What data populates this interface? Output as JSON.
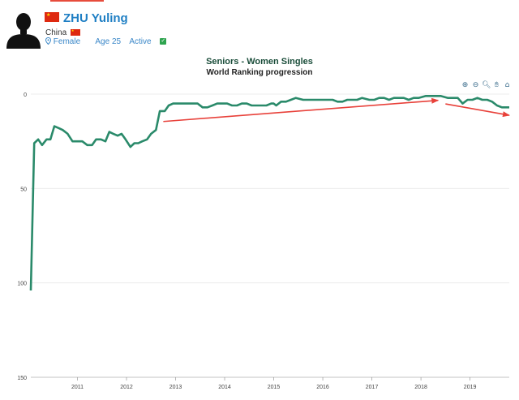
{
  "player": {
    "name": "ZHU Yuling",
    "country": "China",
    "gender": "Female",
    "age": "Age 25",
    "status": "Active",
    "name_color": "#1f7fc4"
  },
  "icons": {
    "avatar": "person-silhouette-icon",
    "flag": "china-flag-icon",
    "gender": "location-pin-icon",
    "status": "check-icon"
  },
  "toolbar": [
    "zoom-in-icon",
    "zoom-out-icon",
    "magnifier-icon",
    "pan-hand-icon",
    "home-icon"
  ],
  "chart_data": {
    "type": "line",
    "title": "Seniors - Women Singles",
    "subtitle": "World Ranking progression",
    "xlabel": "",
    "ylabel": "",
    "y_reversed": true,
    "ylim": [
      0,
      150
    ],
    "xlim": [
      2010.05,
      2019.8
    ],
    "yticks": [
      "0",
      "50",
      "100",
      "150"
    ],
    "xticks": [
      "2011",
      "2012",
      "2013",
      "2014",
      "2015",
      "2016",
      "2017",
      "2018",
      "2019"
    ],
    "grid": "horizontal",
    "line_color": "#2a8a6a",
    "annotation_color": "#e8413a",
    "series": [
      {
        "points": [
          [
            2010.05,
            104
          ],
          [
            2010.12,
            26
          ],
          [
            2010.2,
            24
          ],
          [
            2010.28,
            27
          ],
          [
            2010.37,
            24
          ],
          [
            2010.45,
            24
          ],
          [
            2010.53,
            17
          ],
          [
            2010.62,
            18
          ],
          [
            2010.7,
            19
          ],
          [
            2010.8,
            21
          ],
          [
            2010.9,
            25
          ],
          [
            2011.0,
            25
          ],
          [
            2011.1,
            25
          ],
          [
            2011.2,
            27
          ],
          [
            2011.3,
            27
          ],
          [
            2011.38,
            24
          ],
          [
            2011.48,
            24
          ],
          [
            2011.57,
            25
          ],
          [
            2011.65,
            20
          ],
          [
            2011.73,
            21
          ],
          [
            2011.82,
            22
          ],
          [
            2011.9,
            21
          ],
          [
            2011.98,
            24
          ],
          [
            2012.08,
            28
          ],
          [
            2012.16,
            26
          ],
          [
            2012.24,
            26
          ],
          [
            2012.32,
            25
          ],
          [
            2012.42,
            24
          ],
          [
            2012.5,
            21
          ],
          [
            2012.6,
            19
          ],
          [
            2012.68,
            9
          ],
          [
            2012.78,
            9
          ],
          [
            2012.86,
            6
          ],
          [
            2012.95,
            5
          ],
          [
            2013.1,
            5
          ],
          [
            2013.3,
            5
          ],
          [
            2013.45,
            5
          ],
          [
            2013.55,
            7
          ],
          [
            2013.65,
            7
          ],
          [
            2013.75,
            6
          ],
          [
            2013.85,
            5
          ],
          [
            2013.95,
            5
          ],
          [
            2014.05,
            5
          ],
          [
            2014.15,
            6
          ],
          [
            2014.25,
            6
          ],
          [
            2014.35,
            5
          ],
          [
            2014.45,
            5
          ],
          [
            2014.55,
            6
          ],
          [
            2014.65,
            6
          ],
          [
            2014.75,
            6
          ],
          [
            2014.85,
            6
          ],
          [
            2014.95,
            5
          ],
          [
            2015.0,
            5
          ],
          [
            2015.05,
            6
          ],
          [
            2015.15,
            4
          ],
          [
            2015.25,
            4
          ],
          [
            2015.35,
            3
          ],
          [
            2015.45,
            2
          ],
          [
            2015.6,
            3
          ],
          [
            2015.8,
            3
          ],
          [
            2016.0,
            3
          ],
          [
            2016.1,
            3
          ],
          [
            2016.2,
            3
          ],
          [
            2016.3,
            4
          ],
          [
            2016.4,
            4
          ],
          [
            2016.5,
            3
          ],
          [
            2016.6,
            3
          ],
          [
            2016.7,
            3
          ],
          [
            2016.8,
            2
          ],
          [
            2016.95,
            3
          ],
          [
            2017.05,
            3
          ],
          [
            2017.15,
            2
          ],
          [
            2017.25,
            2
          ],
          [
            2017.35,
            3
          ],
          [
            2017.45,
            2
          ],
          [
            2017.55,
            2
          ],
          [
            2017.65,
            2
          ],
          [
            2017.75,
            3
          ],
          [
            2017.85,
            2
          ],
          [
            2017.95,
            2
          ],
          [
            2018.1,
            1
          ],
          [
            2018.25,
            1
          ],
          [
            2018.4,
            1
          ],
          [
            2018.55,
            2
          ],
          [
            2018.65,
            2
          ],
          [
            2018.75,
            2
          ],
          [
            2018.85,
            5
          ],
          [
            2018.95,
            3
          ],
          [
            2019.05,
            3
          ],
          [
            2019.15,
            2
          ],
          [
            2019.25,
            3
          ],
          [
            2019.35,
            3
          ],
          [
            2019.45,
            4
          ],
          [
            2019.55,
            6
          ],
          [
            2019.65,
            7
          ],
          [
            2019.8,
            7
          ]
        ]
      }
    ],
    "annotations": [
      {
        "type": "arrow",
        "from": [
          2012.75,
          14.5
        ],
        "to": [
          2018.35,
          3.3
        ]
      },
      {
        "type": "arrow",
        "from": [
          2018.5,
          5.2
        ],
        "to": [
          2019.8,
          11.2
        ]
      }
    ]
  }
}
